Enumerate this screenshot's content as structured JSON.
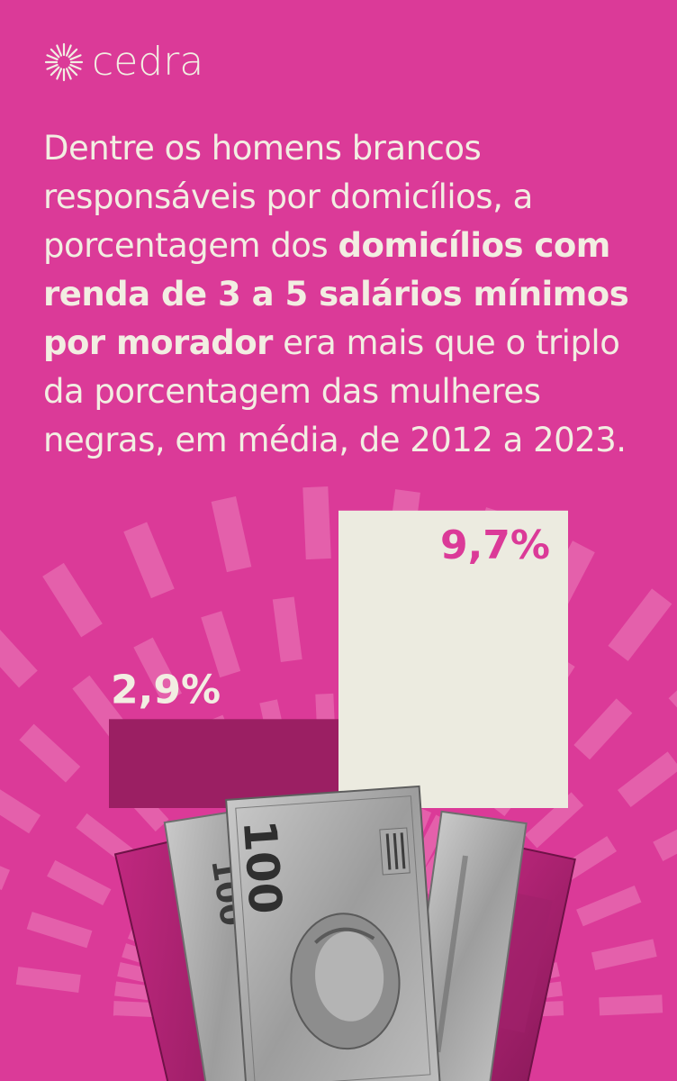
{
  "brand": {
    "name": "cedra",
    "icon": "sunburst-icon"
  },
  "headline": {
    "part1": "Dentre os homens brancos responsáveis por domicílios, a porcentagem dos ",
    "bold": "domicílios com renda de 3 a 5 salários mínimos por morador",
    "part2": " era mais que o triplo da porcentagem das mulheres negras, em média, de 2012 a 2023."
  },
  "chart_data": {
    "type": "bar",
    "categories": [
      "",
      ""
    ],
    "values": [
      2.9,
      9.7
    ],
    "value_labels": [
      "2,9%",
      "9,7%"
    ],
    "title": "",
    "xlabel": "",
    "ylabel": "",
    "ylim": [
      0,
      10.4
    ],
    "grid": false,
    "legend": "none"
  },
  "colors": {
    "background": "#db3a98",
    "bar_women": "#9b1f63",
    "bar_men": "#ecebe0",
    "label_women": "#f2eee2",
    "label_men": "#db3a98",
    "rays": "#f08fc4"
  },
  "illustration": {
    "name": "banknotes-100-reais"
  }
}
